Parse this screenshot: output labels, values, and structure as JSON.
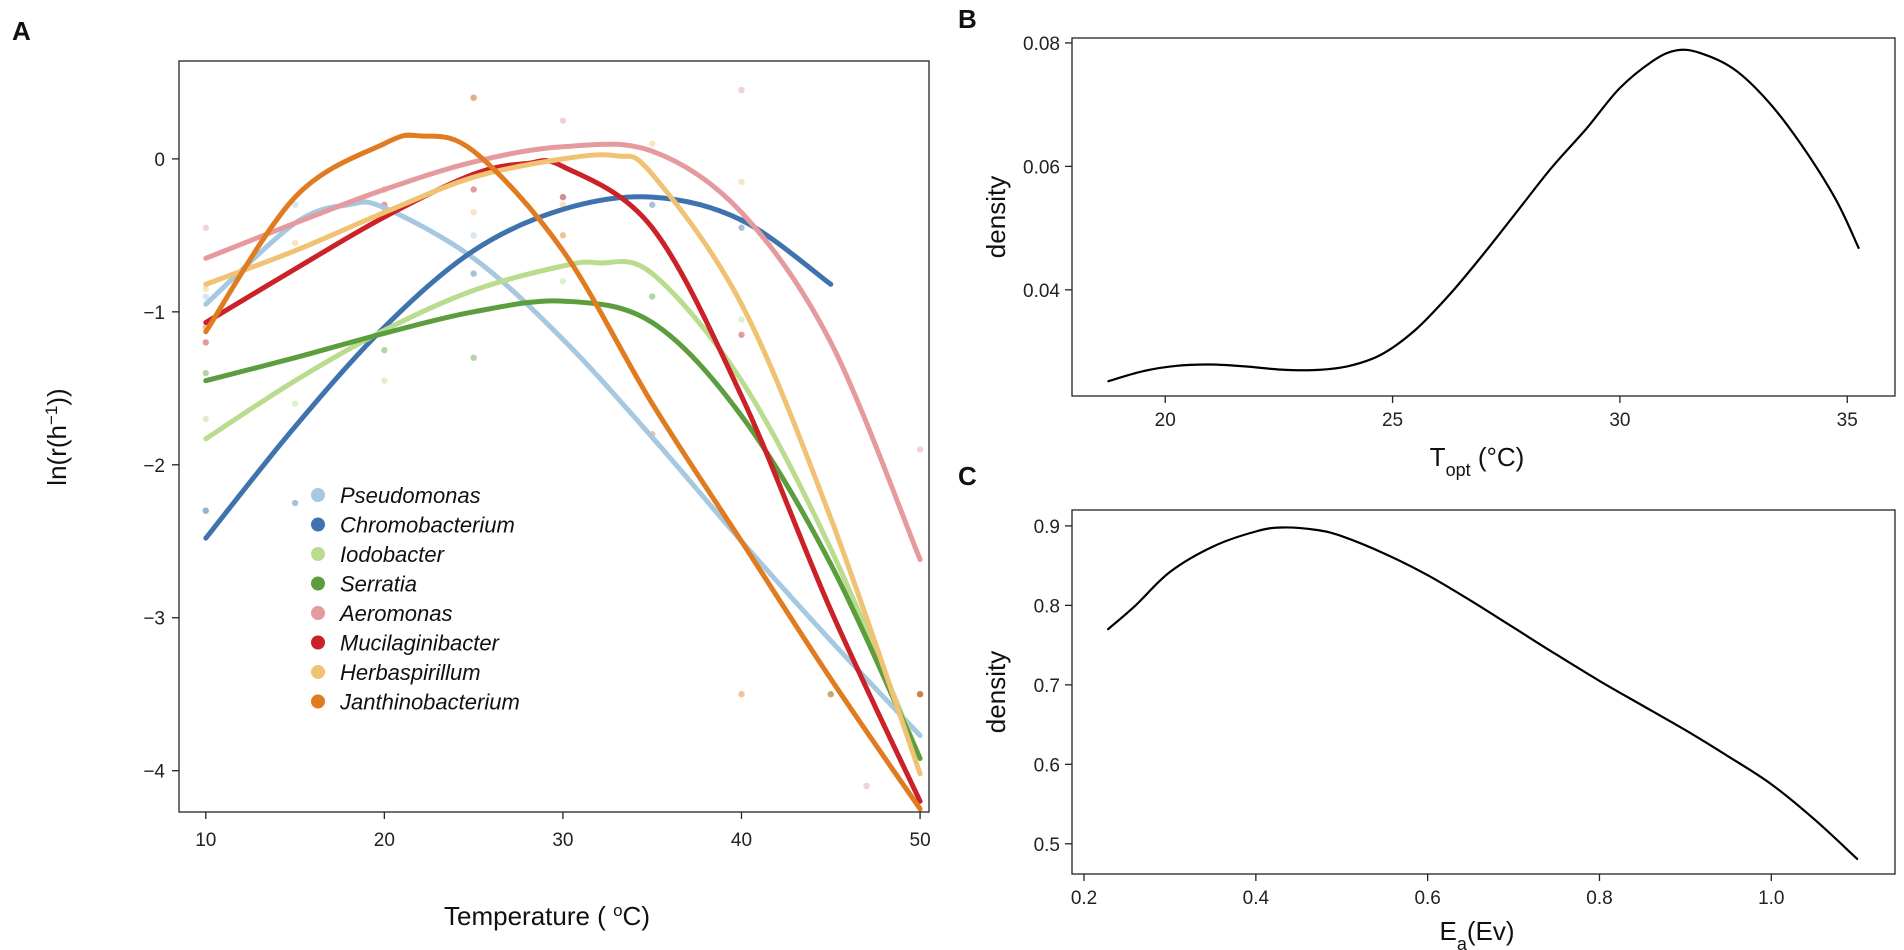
{
  "chart_data": [
    {
      "panel": "A",
      "type": "line",
      "title": "",
      "xlabel": {
        "main": "Temperature ( ",
        "sup": "o",
        "tail": "C)"
      },
      "ylabel": {
        "main": "ln(r(h",
        "sup": "−1",
        "tail": "))"
      },
      "xlim": [
        8.5,
        50.5
      ],
      "ylim": [
        -4.27,
        0.64
      ],
      "xticks": [
        10,
        20,
        30,
        40,
        50
      ],
      "xtick_labels": [
        "10",
        "20",
        "30",
        "40",
        "50"
      ],
      "yticks": [
        0,
        -1,
        -2,
        -3,
        -4
      ],
      "ytick_labels": [
        "0",
        "−1",
        "−2",
        "−3",
        "−4"
      ],
      "grid": false,
      "legend_position": "bottom-left",
      "series": [
        {
          "name": "Pseudomonas",
          "color": "#a6c8e0",
          "x": [
            10,
            15,
            18,
            20,
            25,
            30,
            35,
            40,
            45,
            50
          ],
          "y": [
            -0.95,
            -0.42,
            -0.3,
            -0.32,
            -0.65,
            -1.18,
            -1.82,
            -2.5,
            -3.15,
            -3.77
          ],
          "points": [
            [
              10,
              -0.9
            ],
            [
              10,
              -2.3
            ],
            [
              15,
              -0.3
            ],
            [
              20,
              -0.35
            ],
            [
              25,
              -0.5
            ],
            [
              30,
              -0.25
            ],
            [
              40,
              -0.4
            ]
          ]
        },
        {
          "name": "Chromobacterium",
          "color": "#3f73ae",
          "x": [
            10,
            15,
            20,
            25,
            30,
            35,
            40,
            45
          ],
          "y": [
            -2.48,
            -1.75,
            -1.1,
            -0.6,
            -0.33,
            -0.25,
            -0.4,
            -0.82
          ],
          "points": [
            [
              10,
              -2.3
            ],
            [
              15,
              -2.25
            ],
            [
              25,
              -0.75
            ],
            [
              35,
              -0.3
            ],
            [
              40,
              -0.45
            ]
          ]
        },
        {
          "name": "Iodobacter",
          "color": "#b9dc8e",
          "x": [
            10,
            15,
            20,
            25,
            30,
            32,
            35,
            40,
            45,
            50
          ],
          "y": [
            -1.83,
            -1.45,
            -1.12,
            -0.86,
            -0.7,
            -0.68,
            -0.75,
            -1.45,
            -2.55,
            -3.92
          ],
          "points": [
            [
              10,
              -1.7
            ],
            [
              15,
              -1.6
            ],
            [
              20,
              -1.45
            ],
            [
              30,
              -0.8
            ],
            [
              40,
              -1.05
            ]
          ]
        },
        {
          "name": "Serratia",
          "color": "#5c9e3e",
          "x": [
            10,
            15,
            20,
            25,
            30,
            35,
            40,
            45,
            50
          ],
          "y": [
            -1.45,
            -1.3,
            -1.14,
            -1.0,
            -0.93,
            -1.07,
            -1.68,
            -2.65,
            -3.92
          ],
          "points": [
            [
              10,
              -1.4
            ],
            [
              20,
              -1.25
            ],
            [
              25,
              -1.3
            ],
            [
              35,
              -0.9
            ],
            [
              45,
              -3.5
            ],
            [
              50,
              -3.5
            ]
          ]
        },
        {
          "name": "Aeromonas",
          "color": "#e59a9e",
          "x": [
            10,
            15,
            20,
            25,
            30,
            35,
            40,
            45,
            50
          ],
          "y": [
            -0.65,
            -0.42,
            -0.2,
            -0.02,
            0.08,
            0.05,
            -0.35,
            -1.2,
            -2.62
          ],
          "points": [
            [
              10,
              -0.45
            ],
            [
              25,
              0.4
            ],
            [
              30,
              0.25
            ],
            [
              40,
              0.45
            ],
            [
              47,
              -4.1
            ],
            [
              50,
              -1.9
            ]
          ]
        },
        {
          "name": "Mucilaginibacter",
          "color": "#cb2128",
          "x": [
            10,
            15,
            20,
            25,
            28,
            30,
            35,
            40,
            45,
            50
          ],
          "y": [
            -1.07,
            -0.72,
            -0.38,
            -0.1,
            -0.03,
            -0.05,
            -0.45,
            -1.55,
            -2.95,
            -4.2
          ],
          "points": [
            [
              10,
              -1.2
            ],
            [
              20,
              -0.3
            ],
            [
              25,
              -0.2
            ],
            [
              30,
              -0.25
            ],
            [
              40,
              -1.15
            ],
            [
              50,
              -3.5
            ]
          ]
        },
        {
          "name": "Herbaspirillum",
          "color": "#f0c374",
          "x": [
            10,
            15,
            20,
            25,
            30,
            33,
            35,
            40,
            45,
            50
          ],
          "y": [
            -0.82,
            -0.6,
            -0.35,
            -0.12,
            0.0,
            0.02,
            -0.1,
            -0.95,
            -2.35,
            -4.02
          ],
          "points": [
            [
              10,
              -0.85
            ],
            [
              15,
              -0.55
            ],
            [
              25,
              -0.35
            ],
            [
              30,
              -0.3
            ],
            [
              35,
              0.1
            ],
            [
              40,
              -0.15
            ]
          ]
        },
        {
          "name": "Janthinobacterium",
          "color": "#e07b1f",
          "x": [
            10,
            15,
            20,
            22,
            25,
            30,
            35,
            40,
            45,
            50
          ],
          "y": [
            -1.13,
            -0.25,
            0.1,
            0.15,
            0.05,
            -0.6,
            -1.6,
            -2.5,
            -3.4,
            -4.25
          ],
          "points": [
            [
              10,
              -1.1
            ],
            [
              20,
              -0.2
            ],
            [
              25,
              0.4
            ],
            [
              30,
              -0.5
            ],
            [
              35,
              -1.8
            ],
            [
              40,
              -3.5
            ],
            [
              45,
              -3.5
            ],
            [
              50,
              -3.5
            ]
          ]
        }
      ]
    },
    {
      "panel": "B",
      "type": "line",
      "title": "",
      "xlabel": {
        "main": "T",
        "sub": "opt",
        "tail": " (°C)"
      },
      "ylabel": "density",
      "xlim": [
        17.95,
        36.05
      ],
      "ylim": [
        0.0228,
        0.0808
      ],
      "xticks": [
        20,
        25,
        30,
        35
      ],
      "xtick_labels": [
        "20",
        "25",
        "30",
        "35"
      ],
      "yticks": [
        0.04,
        0.06,
        0.08
      ],
      "ytick_labels": [
        "0.04",
        "0.06",
        "0.08"
      ],
      "grid": false,
      "series": [
        {
          "name": "density",
          "color": "#000000",
          "x": [
            18.75,
            19.5,
            20.25,
            21.0,
            21.75,
            22.5,
            23.25,
            24.0,
            24.75,
            25.5,
            26.25,
            27.0,
            27.75,
            28.5,
            29.25,
            30.0,
            30.75,
            31.25,
            31.75,
            32.5,
            33.25,
            34.0,
            34.75,
            35.25
          ],
          "y": [
            0.0252,
            0.0268,
            0.0277,
            0.0279,
            0.0276,
            0.0271,
            0.027,
            0.0276,
            0.0295,
            0.0335,
            0.0392,
            0.0458,
            0.0528,
            0.0598,
            0.066,
            0.0727,
            0.0772,
            0.0788,
            0.0784,
            0.0758,
            0.0706,
            0.0634,
            0.0546,
            0.0468
          ]
        }
      ]
    },
    {
      "panel": "C",
      "type": "line",
      "title": "",
      "xlabel": {
        "main": "E",
        "sub": "a",
        "tail": "(Ev)"
      },
      "ylabel": "density",
      "xlim": [
        0.186,
        1.144
      ],
      "ylim": [
        0.462,
        0.92
      ],
      "xticks": [
        0.2,
        0.4,
        0.6,
        0.8,
        1.0
      ],
      "xtick_labels": [
        "0.2",
        "0.4",
        "0.6",
        "0.8",
        "1.0"
      ],
      "yticks": [
        0.5,
        0.6,
        0.7,
        0.8,
        0.9
      ],
      "ytick_labels": [
        "0.5",
        "0.6",
        "0.7",
        "0.8",
        "0.9"
      ],
      "grid": false,
      "series": [
        {
          "name": "density",
          "color": "#000000",
          "x": [
            0.228,
            0.26,
            0.3,
            0.35,
            0.4,
            0.43,
            0.47,
            0.5,
            0.55,
            0.6,
            0.65,
            0.7,
            0.75,
            0.8,
            0.85,
            0.9,
            0.95,
            1.0,
            1.05,
            1.1
          ],
          "y": [
            0.77,
            0.8,
            0.842,
            0.874,
            0.893,
            0.898,
            0.895,
            0.887,
            0.865,
            0.838,
            0.806,
            0.772,
            0.738,
            0.705,
            0.674,
            0.643,
            0.61,
            0.575,
            0.531,
            0.481
          ]
        }
      ]
    }
  ]
}
